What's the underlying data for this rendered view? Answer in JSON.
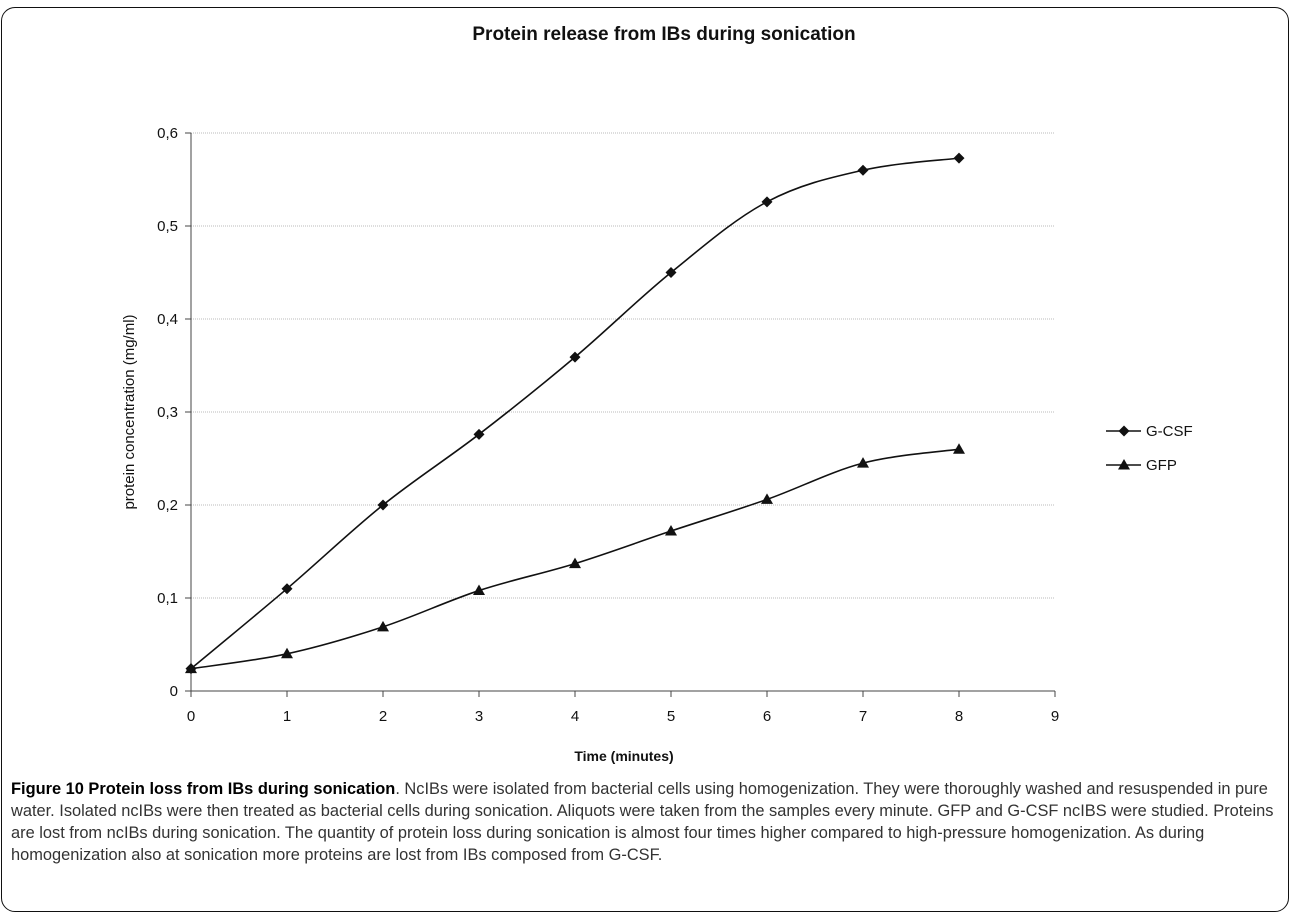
{
  "chart_data": {
    "type": "line",
    "title": "Protein release from IBs during sonication",
    "xlabel": "Time (minutes)",
    "ylabel": "protein concentration (mg/ml)",
    "xlim": [
      0,
      9
    ],
    "ylim": [
      0,
      0.6
    ],
    "x_ticks": [
      "0",
      "1",
      "2",
      "3",
      "4",
      "5",
      "6",
      "7",
      "8",
      "9"
    ],
    "y_ticks": [
      "0",
      "0,1",
      "0,2",
      "0,3",
      "0,4",
      "0,5",
      "0,6"
    ],
    "grid": "horizontal",
    "legend_position": "right",
    "x": [
      0,
      1,
      2,
      3,
      4,
      5,
      6,
      7,
      8
    ],
    "series": [
      {
        "name": "G-CSF",
        "marker": "diamond",
        "values": [
          0.024,
          0.11,
          0.2,
          0.276,
          0.359,
          0.45,
          0.526,
          0.56,
          0.573
        ]
      },
      {
        "name": "GFP",
        "marker": "triangle",
        "values": [
          0.024,
          0.04,
          0.069,
          0.108,
          0.137,
          0.172,
          0.206,
          0.245,
          0.26
        ]
      }
    ],
    "colors": {
      "line": "#111111",
      "grid": "#bbbbbb",
      "axis": "#444444"
    }
  },
  "caption": {
    "label": "Figure 10 Protein loss from IBs during sonication",
    "text": ". NcIBs were isolated from bacterial cells using homogenization. They were thoroughly washed and resuspended in pure water. Isolated ncIBs were then treated as bacterial cells during sonication. Aliquots were taken from the samples every minute. GFP and G-CSF ncIBS were studied. Proteins are lost from ncIBs during sonication. The quantity of protein loss during sonication is almost four times higher compared to high-pressure homogenization. As during homogenization also at sonication more proteins are lost from IBs composed from G-CSF."
  }
}
